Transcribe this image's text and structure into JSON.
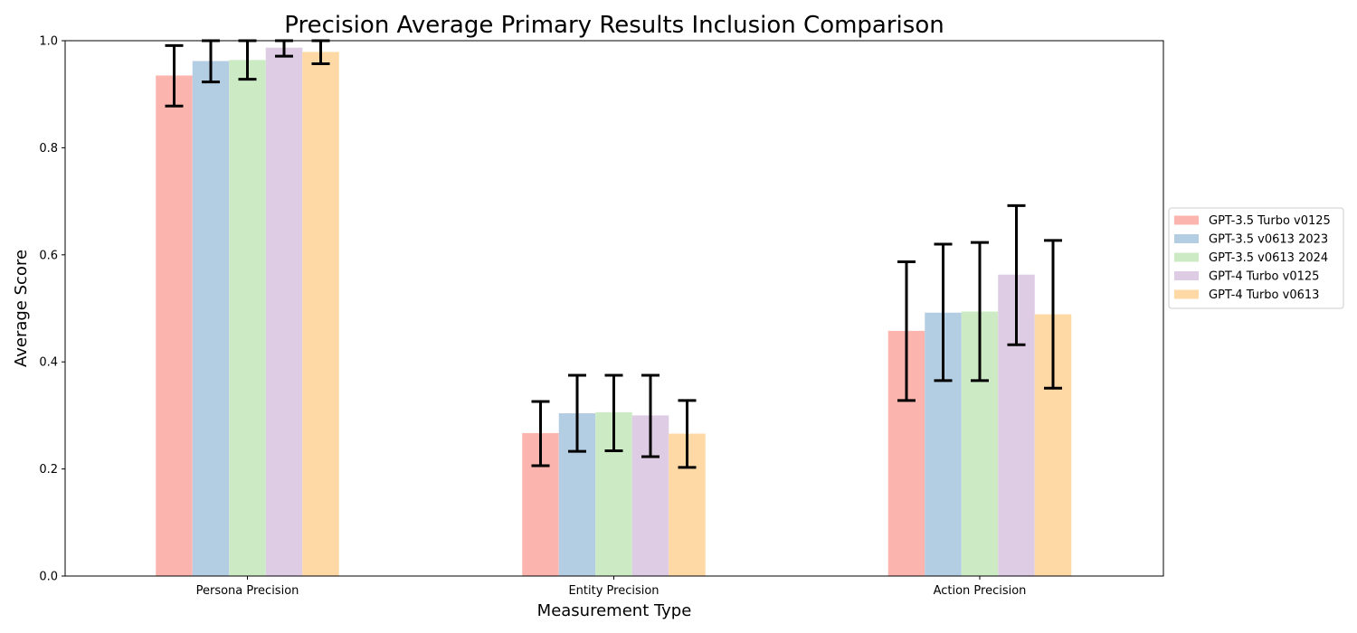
{
  "chart_data": {
    "type": "bar",
    "title": "Precision Average Primary Results Inclusion Comparison",
    "xlabel": "Measurement Type",
    "ylabel": "Average Score",
    "ylim": [
      0,
      1.0
    ],
    "yticks": [
      "0.0",
      "0.2",
      "0.4",
      "0.6",
      "0.8",
      "1.0"
    ],
    "categories": [
      "Persona Precision",
      "Entity Precision",
      "Action Precision"
    ],
    "series": [
      {
        "name": "GPT-3.5 Turbo v0125",
        "color": "#fbb4ae",
        "values": [
          0.935,
          0.267,
          0.458
        ],
        "err_low": [
          0.878,
          0.206,
          0.328
        ],
        "err_high": [
          0.991,
          0.326,
          0.587
        ]
      },
      {
        "name": "GPT-3.5 v0613 2023",
        "color": "#b3cde3",
        "values": [
          0.962,
          0.304,
          0.492
        ],
        "err_low": [
          0.923,
          0.233,
          0.365
        ],
        "err_high": [
          1.0,
          0.375,
          0.62
        ]
      },
      {
        "name": "GPT-3.5 v0613 2024",
        "color": "#ccebc5",
        "values": [
          0.964,
          0.306,
          0.494
        ],
        "err_low": [
          0.928,
          0.234,
          0.365
        ],
        "err_high": [
          1.0,
          0.375,
          0.623
        ]
      },
      {
        "name": "GPT-4 Turbo v0125",
        "color": "#decbe4",
        "values": [
          0.987,
          0.3,
          0.563
        ],
        "err_low": [
          0.971,
          0.223,
          0.432
        ],
        "err_high": [
          1.0,
          0.375,
          0.692
        ]
      },
      {
        "name": "GPT-4 Turbo v0613",
        "color": "#fed9a6",
        "values": [
          0.979,
          0.266,
          0.489
        ],
        "err_low": [
          0.957,
          0.203,
          0.351
        ],
        "err_high": [
          1.0,
          0.328,
          0.627
        ]
      }
    ],
    "legend_position": "right"
  }
}
